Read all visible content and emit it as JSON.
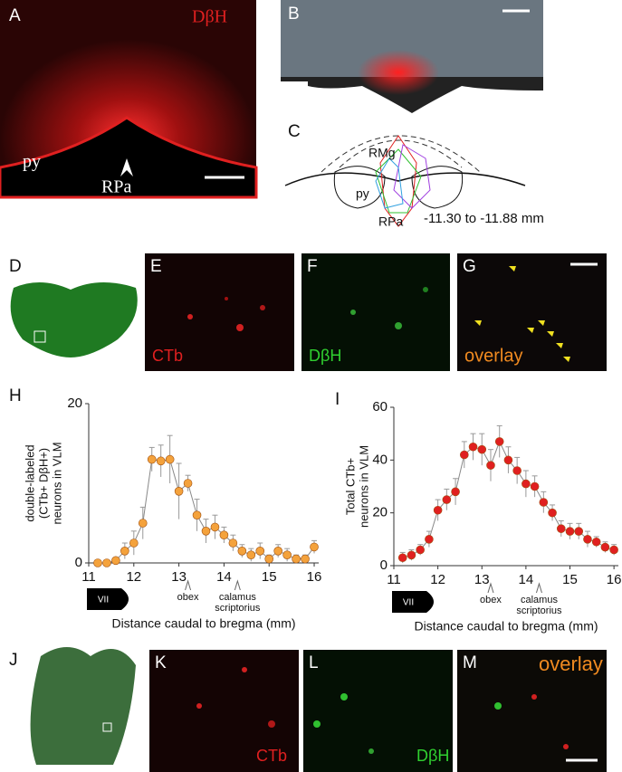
{
  "panels": [
    {
      "letter": "A",
      "labels": [
        "DβH",
        "py",
        "RPa"
      ]
    },
    {
      "letter": "B",
      "labels": []
    },
    {
      "letter": "C",
      "labels": [
        "RMg",
        "py",
        "RPa",
        "-11.30 to -11.88 mm"
      ]
    },
    {
      "letter": "D",
      "labels": []
    },
    {
      "letter": "E",
      "labels": [
        "CTb"
      ]
    },
    {
      "letter": "F",
      "labels": [
        "DβH"
      ]
    },
    {
      "letter": "G",
      "labels": [
        "overlay"
      ]
    },
    {
      "letter": "J",
      "labels": []
    },
    {
      "letter": "K",
      "labels": [
        "CTb"
      ]
    },
    {
      "letter": "L",
      "labels": [
        "DβH"
      ]
    },
    {
      "letter": "M",
      "labels": [
        "overlay"
      ]
    }
  ],
  "chart_data": [
    {
      "type": "line",
      "letter": "H",
      "x": [
        11.2,
        11.4,
        11.6,
        11.8,
        12.0,
        12.2,
        12.4,
        12.6,
        12.8,
        13.0,
        13.2,
        13.4,
        13.6,
        13.8,
        14.0,
        14.2,
        14.4,
        14.6,
        14.8,
        15.0,
        15.2,
        15.4,
        15.6,
        15.8,
        16.0
      ],
      "series": [
        {
          "color": "#f4a23c",
          "values": [
            0,
            0,
            0.3,
            1.5,
            2.5,
            5,
            13,
            12.8,
            13,
            9,
            10,
            6,
            4,
            4.5,
            3.5,
            2.5,
            1.5,
            1,
            1.5,
            0.5,
            1.5,
            1,
            0.5,
            0.5,
            2
          ],
          "errors": [
            0,
            0,
            0.3,
            1,
            1.5,
            2,
            1.5,
            2,
            3,
            3.5,
            1,
            2,
            1.5,
            1.5,
            1,
            1,
            0.8,
            0.8,
            1,
            0.5,
            0.8,
            0.8,
            0.5,
            0.5,
            0.8
          ]
        }
      ],
      "xlim": [
        11,
        16.1
      ],
      "xticks": [
        11,
        12,
        13,
        14,
        15,
        16
      ],
      "ylim": [
        0,
        20
      ],
      "yticks": [
        0,
        20
      ],
      "xlabel": "Distance caudal to bregma (mm)",
      "ylabel": [
        "double-labeled",
        "(CTb+ DβH+)",
        "neurons in VLM"
      ],
      "marker_label": "VII",
      "annotations": [
        {
          "text": [
            "obex"
          ],
          "x": 13.2
        },
        {
          "text": [
            "calamus",
            "scriptorius"
          ],
          "x": 14.3
        }
      ]
    },
    {
      "type": "line",
      "letter": "I",
      "x": [
        11.2,
        11.4,
        11.6,
        11.8,
        12.0,
        12.2,
        12.4,
        12.6,
        12.8,
        13.0,
        13.2,
        13.4,
        13.6,
        13.8,
        14.0,
        14.2,
        14.4,
        14.6,
        14.8,
        15.0,
        15.2,
        15.4,
        15.6,
        15.8,
        16.0
      ],
      "series": [
        {
          "color": "#e02020",
          "values": [
            3,
            4,
            6,
            10,
            21,
            25,
            28,
            42,
            45,
            44,
            38,
            47,
            40,
            36,
            31,
            30,
            24,
            20,
            14,
            13,
            13,
            10,
            9,
            7,
            6
          ],
          "errors": [
            2,
            2,
            2,
            3,
            4,
            4,
            5,
            5,
            5,
            6,
            6,
            6,
            5,
            5,
            5,
            4,
            4,
            3,
            3,
            3,
            3,
            3,
            2,
            2,
            2
          ]
        }
      ],
      "xlim": [
        11,
        16.1
      ],
      "xticks": [
        11,
        12,
        13,
        14,
        15,
        16
      ],
      "ylim": [
        0,
        60
      ],
      "yticks": [
        0,
        20,
        40,
        60
      ],
      "xlabel": "Distance caudal to bregma (mm)",
      "ylabel": [
        "Total CTb+",
        "neurons in VLM"
      ],
      "marker_label": "VII",
      "annotations": [
        {
          "text": [
            "obex"
          ],
          "x": 13.2
        },
        {
          "text": [
            "calamus",
            "scriptorius"
          ],
          "x": 14.3
        }
      ]
    }
  ]
}
